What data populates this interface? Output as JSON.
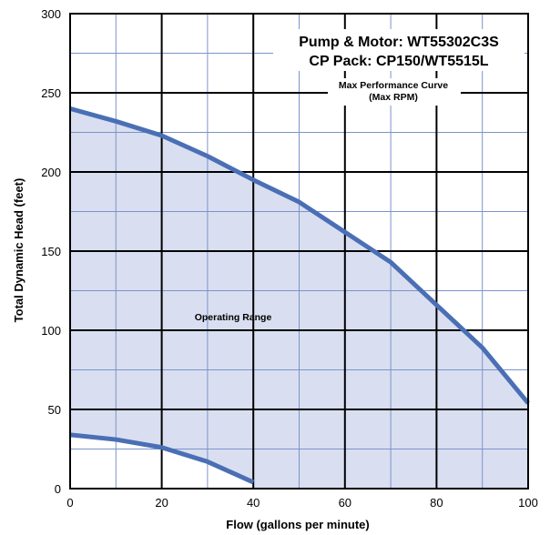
{
  "chart_data": {
    "type": "area",
    "title_lines": [
      "Pump & Motor: WT55302C3S",
      "CP Pack: CP150/WT5515L"
    ],
    "xlabel": "Flow (gallons per minute)",
    "ylabel": "Total Dynamic Head (feet)",
    "xlim": [
      0,
      100
    ],
    "ylim": [
      0,
      300
    ],
    "x_ticks": [
      0,
      20,
      40,
      60,
      80,
      100
    ],
    "y_ticks": [
      0,
      50,
      100,
      150,
      200,
      250,
      300
    ],
    "x_minor_step": 10,
    "y_minor_step": 25,
    "grid": true,
    "series": [
      {
        "name": "Max Performance Curve",
        "role": "upper",
        "x": [
          0,
          10,
          20,
          30,
          40,
          50,
          60,
          70,
          80,
          90,
          100
        ],
        "y": [
          240,
          232,
          223,
          210,
          195,
          181,
          162,
          143,
          116,
          89,
          54
        ]
      },
      {
        "role": "lower",
        "x": [
          0,
          10,
          20,
          30,
          40
        ],
        "y": [
          34,
          31,
          26,
          17,
          4
        ]
      }
    ],
    "annotations": {
      "curve_label_lines": [
        "Max Performance Curve",
        "(Max RPM)"
      ],
      "region_label": "Operating Range"
    },
    "colors": {
      "curve": "#4a6fb5",
      "fill": "#d9dff0",
      "major_grid": "#000000",
      "minor_grid": "#7b93cc"
    }
  }
}
